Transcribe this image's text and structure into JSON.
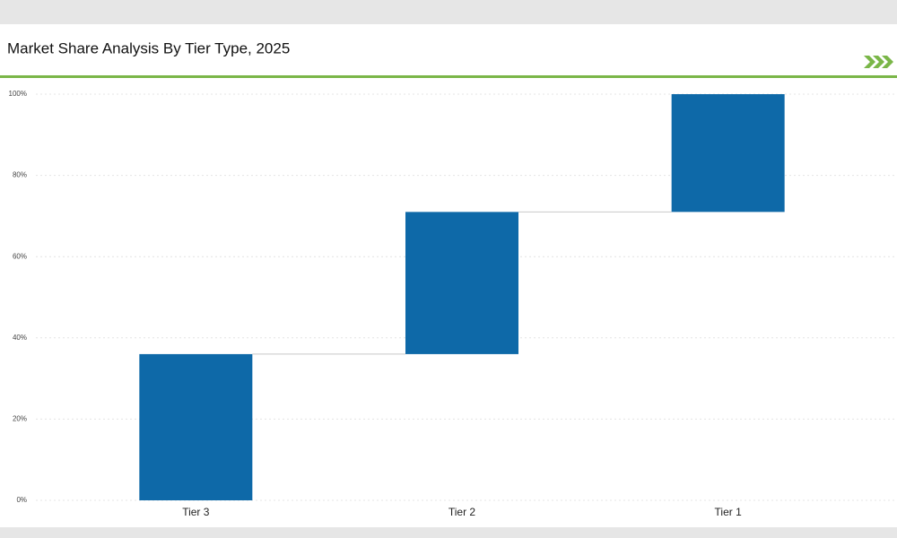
{
  "chart_data": {
    "type": "waterfall",
    "title": "Market Share Analysis By Tier Type, 2025",
    "categories": [
      "Tier 3",
      "Tier 2",
      "Tier 1"
    ],
    "values": [
      36,
      35,
      29
    ],
    "color": "#0e69a8",
    "ylim": [
      0,
      100
    ],
    "yticks": [
      {
        "value": 0,
        "label": "0%"
      },
      {
        "value": 20,
        "label": "20%"
      },
      {
        "value": 40,
        "label": "40%"
      },
      {
        "value": 60,
        "label": "60%"
      },
      {
        "value": 80,
        "label": "80%"
      },
      {
        "value": 100,
        "label": "100%"
      }
    ],
    "grid": true
  }
}
